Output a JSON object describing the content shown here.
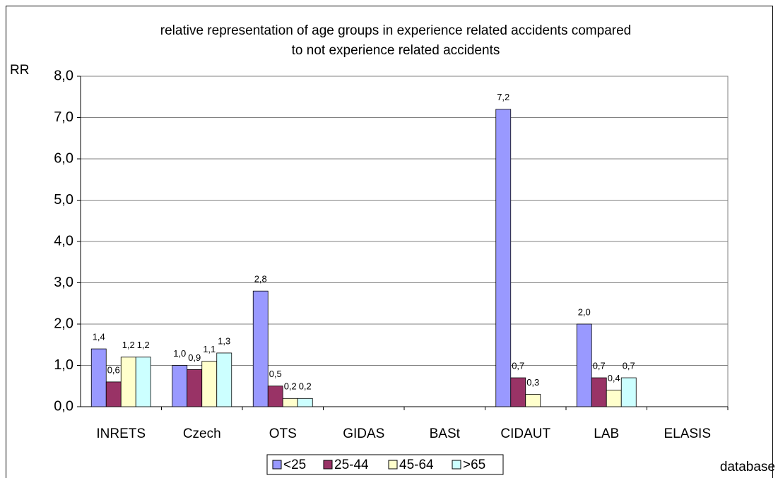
{
  "chart_data": {
    "type": "bar",
    "title": [
      "relative representation of age groups in experience related accidents compared",
      "to not experience related accidents"
    ],
    "y_label": "RR",
    "x_label": "database",
    "categories": [
      "INRETS",
      "Czech",
      "OTS",
      "GIDAS",
      "BASt",
      "CIDAUT",
      "LAB",
      "ELASIS"
    ],
    "series": [
      {
        "name": "<25",
        "color": "#9999ff",
        "values": [
          1.4,
          1.0,
          2.8,
          null,
          null,
          7.2,
          2.0,
          null
        ],
        "value_labels": [
          "1,4",
          "1,0",
          "2,8",
          null,
          null,
          "7,2",
          "2,0",
          null
        ]
      },
      {
        "name": "25-44",
        "color": "#993366",
        "values": [
          0.6,
          0.9,
          0.5,
          null,
          null,
          0.7,
          0.7,
          null
        ],
        "value_labels": [
          "0,6",
          "0,9",
          "0,5",
          null,
          null,
          "0,7",
          "0,7",
          null
        ]
      },
      {
        "name": "45-64",
        "color": "#ffffcc",
        "values": [
          1.2,
          1.1,
          0.2,
          null,
          null,
          0.3,
          0.4,
          null
        ],
        "value_labels": [
          "1,2",
          "1,1",
          "0,2",
          null,
          null,
          "0,3",
          "0,4",
          null
        ]
      },
      {
        "name": ">65",
        "color": "#ccffff",
        "values": [
          1.2,
          1.3,
          0.2,
          null,
          null,
          null,
          0.7,
          null
        ],
        "value_labels": [
          "1,2",
          "1,3",
          "0,2",
          null,
          null,
          null,
          "0,7",
          null
        ]
      }
    ],
    "ylim": [
      0,
      8
    ],
    "yticks": [
      {
        "value": 0,
        "label": "0,0"
      },
      {
        "value": 1,
        "label": "1,0"
      },
      {
        "value": 2,
        "label": "2,0"
      },
      {
        "value": 3,
        "label": "3,0"
      },
      {
        "value": 4,
        "label": "4,0"
      },
      {
        "value": 5,
        "label": "5,0"
      },
      {
        "value": 6,
        "label": "6,0"
      },
      {
        "value": 7,
        "label": "7,0"
      },
      {
        "value": 8,
        "label": "8,0"
      }
    ],
    "grid": true,
    "legend": "bottom"
  }
}
